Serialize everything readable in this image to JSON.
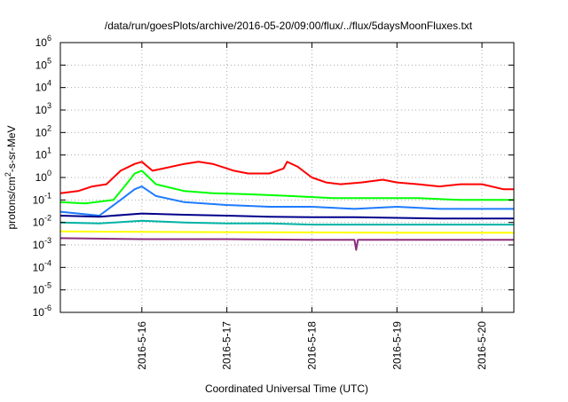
{
  "chart_data": {
    "type": "line",
    "title": "/data/run/goesPlots/archive/2016-05-20/09:00/flux/../flux/5daysMoonFluxes.txt",
    "xlabel": "Coordinated Universal Time (UTC)",
    "ylabel_parts": {
      "before": "protons/cm",
      "sup": "2",
      "after": "-s-sr-MeV"
    },
    "y_scale": "log",
    "ylim": [
      1e-06,
      1000000.0
    ],
    "xlim": [
      "2016-05-15T01:00",
      "2016-05-20T09:00"
    ],
    "grid": true,
    "y_tick_labels": [
      {
        "base": "10",
        "exp": "-6",
        "value": 1e-06
      },
      {
        "base": "10",
        "exp": "-5",
        "value": 1e-05
      },
      {
        "base": "10",
        "exp": "-4",
        "value": 0.0001
      },
      {
        "base": "10",
        "exp": "-3",
        "value": 0.001
      },
      {
        "base": "10",
        "exp": "-2",
        "value": 0.01
      },
      {
        "base": "10",
        "exp": "-1",
        "value": 0.1
      },
      {
        "base": "10",
        "exp": "0",
        "value": 1
      },
      {
        "base": "10",
        "exp": "1",
        "value": 10
      },
      {
        "base": "10",
        "exp": "2",
        "value": 100
      },
      {
        "base": "10",
        "exp": "3",
        "value": 1000
      },
      {
        "base": "10",
        "exp": "4",
        "value": 10000
      },
      {
        "base": "10",
        "exp": "5",
        "value": 100000
      },
      {
        "base": "10",
        "exp": "6",
        "value": 1000000
      }
    ],
    "x_ticks": [
      {
        "label": "2016-5-16",
        "value": "2016-05-16T00:00"
      },
      {
        "label": "2016-5-17",
        "value": "2016-05-17T00:00"
      },
      {
        "label": "2016-5-18",
        "value": "2016-05-18T00:00"
      },
      {
        "label": "2016-5-19",
        "value": "2016-05-19T00:00"
      },
      {
        "label": "2016-5-20",
        "value": "2016-05-20T00:00"
      }
    ],
    "series": [
      {
        "color": "#ff0000",
        "x": [
          "2016-05-15T01:00",
          "2016-05-15T06:00",
          "2016-05-15T10:00",
          "2016-05-15T14:00",
          "2016-05-15T18:00",
          "2016-05-15T22:00",
          "2016-05-16T00:00",
          "2016-05-16T03:00",
          "2016-05-16T06:00",
          "2016-05-16T12:00",
          "2016-05-16T16:00",
          "2016-05-16T20:00",
          "2016-05-17T02:00",
          "2016-05-17T06:00",
          "2016-05-17T12:00",
          "2016-05-17T16:00",
          "2016-05-17T17:00",
          "2016-05-17T20:00",
          "2016-05-18T00:00",
          "2016-05-18T04:00",
          "2016-05-18T08:00",
          "2016-05-18T14:00",
          "2016-05-18T20:00",
          "2016-05-19T00:00",
          "2016-05-19T06:00",
          "2016-05-19T12:00",
          "2016-05-19T18:00",
          "2016-05-20T00:00",
          "2016-05-20T06:00",
          "2016-05-20T09:00"
        ],
        "values": [
          0.2,
          0.25,
          0.4,
          0.5,
          2.0,
          4.0,
          5.0,
          2.0,
          2.5,
          4.0,
          5.0,
          4.0,
          2.0,
          1.5,
          1.5,
          2.5,
          5.0,
          3.0,
          1.0,
          0.6,
          0.5,
          0.6,
          0.8,
          0.6,
          0.5,
          0.4,
          0.5,
          0.5,
          0.3,
          0.3
        ]
      },
      {
        "color": "#00ff00",
        "x": [
          "2016-05-15T01:00",
          "2016-05-15T08:00",
          "2016-05-15T16:00",
          "2016-05-15T20:00",
          "2016-05-15T22:00",
          "2016-05-16T00:00",
          "2016-05-16T04:00",
          "2016-05-16T12:00",
          "2016-05-16T20:00",
          "2016-05-17T06:00",
          "2016-05-17T18:00",
          "2016-05-18T06:00",
          "2016-05-18T18:00",
          "2016-05-19T06:00",
          "2016-05-19T18:00",
          "2016-05-20T00:00",
          "2016-05-20T09:00"
        ],
        "values": [
          0.08,
          0.07,
          0.1,
          0.6,
          1.5,
          2.0,
          0.5,
          0.25,
          0.2,
          0.18,
          0.15,
          0.12,
          0.12,
          0.12,
          0.1,
          0.1,
          0.1
        ]
      },
      {
        "color": "#1e7bff",
        "x": [
          "2016-05-15T01:00",
          "2016-05-15T12:00",
          "2016-05-15T18:00",
          "2016-05-15T22:00",
          "2016-05-16T00:00",
          "2016-05-16T04:00",
          "2016-05-16T12:00",
          "2016-05-17T00:00",
          "2016-05-17T12:00",
          "2016-05-18T00:00",
          "2016-05-18T12:00",
          "2016-05-19T00:00",
          "2016-05-19T12:00",
          "2016-05-20T00:00",
          "2016-05-20T09:00"
        ],
        "values": [
          0.03,
          0.02,
          0.1,
          0.3,
          0.4,
          0.15,
          0.08,
          0.06,
          0.05,
          0.05,
          0.04,
          0.05,
          0.04,
          0.04,
          0.04
        ]
      },
      {
        "color": "#00008b",
        "x": [
          "2016-05-15T01:00",
          "2016-05-15T12:00",
          "2016-05-16T00:00",
          "2016-05-16T12:00",
          "2016-05-17T00:00",
          "2016-05-17T12:00",
          "2016-05-18T00:00",
          "2016-05-18T12:00",
          "2016-05-19T00:00",
          "2016-05-19T12:00",
          "2016-05-20T00:00",
          "2016-05-20T09:00"
        ],
        "values": [
          0.02,
          0.018,
          0.025,
          0.022,
          0.02,
          0.018,
          0.017,
          0.017,
          0.016,
          0.015,
          0.015,
          0.015
        ]
      },
      {
        "color": "#00b3a4",
        "x": [
          "2016-05-15T01:00",
          "2016-05-15T12:00",
          "2016-05-16T00:00",
          "2016-05-16T12:00",
          "2016-05-17T00:00",
          "2016-05-17T12:00",
          "2016-05-18T00:00",
          "2016-05-18T12:00",
          "2016-05-19T00:00",
          "2016-05-19T12:00",
          "2016-05-20T00:00",
          "2016-05-20T09:00"
        ],
        "values": [
          0.01,
          0.009,
          0.012,
          0.01,
          0.009,
          0.009,
          0.008,
          0.008,
          0.008,
          0.008,
          0.008,
          0.008
        ]
      },
      {
        "color": "#ffff00",
        "x": [
          "2016-05-15T01:00",
          "2016-05-16T00:00",
          "2016-05-17T00:00",
          "2016-05-18T00:00",
          "2016-05-19T00:00",
          "2016-05-20T00:00",
          "2016-05-20T09:00"
        ],
        "values": [
          0.004,
          0.0038,
          0.0037,
          0.0036,
          0.0035,
          0.0035,
          0.0035
        ]
      },
      {
        "color": "#8b2d7e",
        "x": [
          "2016-05-15T01:00",
          "2016-05-16T00:00",
          "2016-05-17T00:00",
          "2016-05-18T00:00",
          "2016-05-18T12:00",
          "2016-05-18T12:30",
          "2016-05-18T13:00",
          "2016-05-19T00:00",
          "2016-05-20T00:00",
          "2016-05-20T09:00"
        ],
        "values": [
          0.002,
          0.0018,
          0.0018,
          0.0017,
          0.0017,
          0.0006,
          0.0017,
          0.0017,
          0.0017,
          0.0017
        ]
      }
    ]
  }
}
